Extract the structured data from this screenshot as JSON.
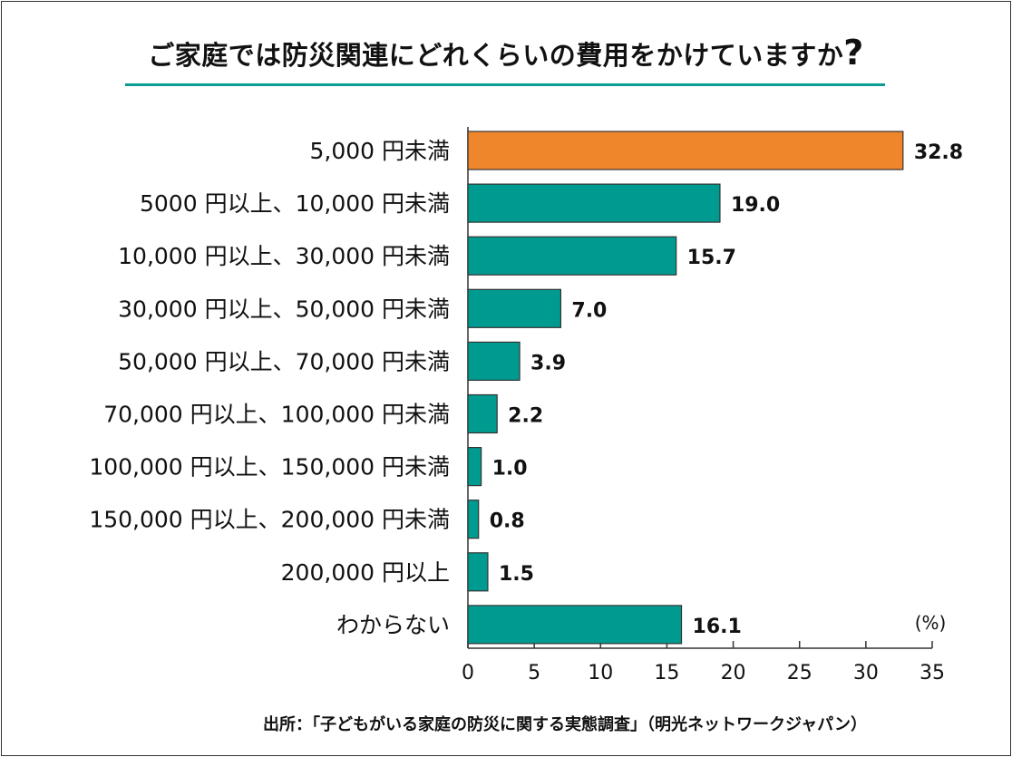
{
  "colors": {
    "highlight": "#F0862B",
    "bar": "#009B90",
    "accent_line": "#0A9C94",
    "bar_stroke": "#333333"
  },
  "chart_data": {
    "type": "bar",
    "orientation": "horizontal",
    "title": "ご家庭では防災関連にどれくらいの費用をかけていますか",
    "title_mark": "?",
    "categories": [
      "5,000 円未満",
      "5000 円以上、10,000 円未満",
      "10,000 円以上、30,000 円未満",
      "30,000 円以上、50,000 円未満",
      "50,000 円以上、70,000 円未満",
      "70,000 円以上、100,000 円未満",
      "100,000 円以上、150,000 円未満",
      "150,000 円以上、200,000 円未満",
      "200,000 円以上",
      "わからない"
    ],
    "values": [
      32.8,
      19.0,
      15.7,
      7.0,
      3.9,
      2.2,
      1.0,
      0.8,
      1.5,
      16.1
    ],
    "value_labels": [
      "32.8",
      "19.0",
      "15.7",
      "7.0",
      "3.9",
      "2.2",
      "1.0",
      "0.8",
      "1.5",
      "16.1"
    ],
    "highlight_index": 0,
    "xlim": [
      0,
      35
    ],
    "xticks": [
      0,
      5,
      10,
      15,
      20,
      25,
      30,
      35
    ],
    "unit": "(%)",
    "source": "出所：「子どもがいる家庭の防災に関する実態調査」（明光ネットワークジャパン）"
  }
}
